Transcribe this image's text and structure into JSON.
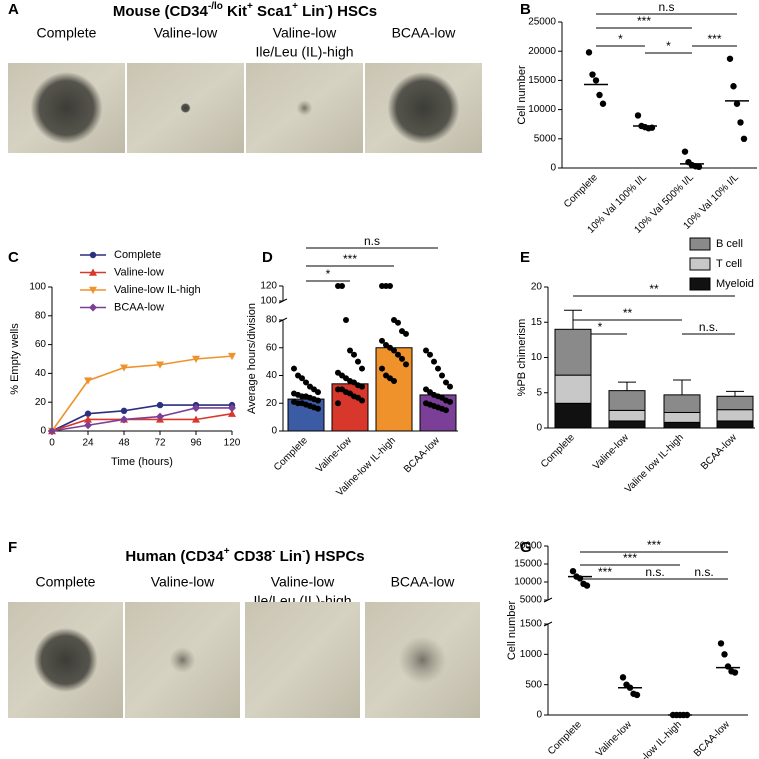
{
  "figure_a": {
    "panel_label": "A",
    "title": [
      "Mouse (CD34",
      "-/lo",
      " Kit",
      "+",
      " Sca1",
      "+",
      " Lin",
      "-",
      ") HSCs"
    ],
    "conditions": [
      [
        "Complete"
      ],
      [
        "Valine-low"
      ],
      [
        "Valine-low",
        "Ile/Leu (IL)-high"
      ],
      [
        "BCAA-low"
      ]
    ]
  },
  "figure_f": {
    "panel_label": "F",
    "title": [
      "Human (CD34",
      "+",
      " CD38",
      "-",
      " Lin",
      "-",
      ") HSPCs"
    ],
    "conditions": [
      [
        "Complete"
      ],
      [
        "Valine-low"
      ],
      [
        "Valine-low",
        "Ile/Leu (IL)-high"
      ],
      [
        "BCAA-low"
      ]
    ]
  },
  "chart_data": [
    {
      "panel_label": "B",
      "type": "dot_plot",
      "ylabel": "Cell number",
      "categories": [
        "Complete",
        "10% Val 100% I/L",
        "10% Val 500% I/L",
        "10% Val 10% I/L"
      ],
      "points": [
        [
          19800,
          16000,
          15000,
          12500,
          11000
        ],
        [
          9000,
          7200,
          7000,
          6800,
          6900
        ],
        [
          2800,
          1000,
          500,
          300,
          200
        ],
        [
          18700,
          14000,
          11000,
          7800,
          5000
        ]
      ],
      "means": [
        14300,
        7200,
        700,
        11500
      ],
      "ylim": [
        0,
        25000
      ],
      "yticks": [
        0,
        5000,
        10000,
        15000,
        20000,
        25000
      ],
      "annotations": [
        "n.s",
        "***",
        "*",
        "*",
        "***"
      ],
      "color": "#000000"
    },
    {
      "panel_label": "C",
      "type": "line",
      "ylabel": "% Empty wells",
      "xlabel": "Time (hours)",
      "x": [
        0,
        24,
        48,
        72,
        96,
        120
      ],
      "xlim": [
        0,
        120
      ],
      "xticks": [
        0,
        24,
        48,
        72,
        96,
        120
      ],
      "ylim": [
        0,
        100
      ],
      "yticks": [
        0,
        20,
        40,
        60,
        80,
        100
      ],
      "legend": "upper left",
      "series": [
        {
          "name": "Complete",
          "color": "#2b2f7f",
          "marker": "circle",
          "values": [
            0,
            12,
            14,
            18,
            18,
            18
          ]
        },
        {
          "name": "Valine-low",
          "color": "#d8382c",
          "marker": "triangle",
          "values": [
            0,
            8,
            8,
            8,
            8,
            12
          ]
        },
        {
          "name": "Valine-low IL-high",
          "color": "#f0922b",
          "marker": "triangle-down",
          "values": [
            0,
            35,
            44,
            46,
            50,
            52
          ]
        },
        {
          "name": "BCAA-low",
          "color": "#7b3f98",
          "marker": "diamond",
          "values": [
            0,
            4,
            8,
            10,
            16,
            16
          ]
        }
      ]
    },
    {
      "panel_label": "D",
      "type": "bar_dots",
      "ylabel": "Average hours/division",
      "categories": [
        "Complete",
        "Valine-low",
        "Valine-low IL-high",
        "BCAA-low"
      ],
      "values": [
        23,
        34,
        60,
        26
      ],
      "colors": [
        "#3b5ba5",
        "#d8382c",
        "#f0922b",
        "#7b3f98"
      ],
      "points": [
        [
          45,
          40,
          38,
          35,
          32,
          30,
          28,
          27,
          26,
          25,
          25,
          24,
          23,
          22,
          21,
          20,
          20,
          19,
          18,
          17,
          16
        ],
        [
          120,
          120,
          80,
          58,
          55,
          50,
          45,
          42,
          40,
          38,
          36,
          35,
          33,
          32,
          30,
          30,
          28,
          27,
          25,
          24,
          22,
          20
        ],
        [
          120,
          120,
          120,
          80,
          78,
          72,
          70,
          65,
          62,
          60,
          58,
          55,
          52,
          48,
          45,
          40,
          38,
          36
        ],
        [
          58,
          55,
          50,
          45,
          40,
          35,
          32,
          30,
          28,
          26,
          25,
          24,
          22,
          21,
          20,
          19,
          18,
          17,
          16,
          15
        ]
      ],
      "ylim": [
        0,
        80
      ],
      "yticks": [
        0,
        20,
        40,
        60,
        80
      ],
      "ylim_upper": [
        100,
        120
      ],
      "yticks_upper": [
        100,
        120
      ],
      "annotations": [
        "n.s",
        "***",
        "*"
      ]
    },
    {
      "panel_label": "E",
      "type": "stacked_bar",
      "ylabel": "%PB chimerism",
      "categories": [
        "Complete",
        "Valine-low",
        "Valine low IL-high",
        "BCAA-low"
      ],
      "series": [
        {
          "name": "Myeloid",
          "color": "#111111",
          "values": [
            3.5,
            1,
            0.8,
            1
          ]
        },
        {
          "name": "T cell",
          "color": "#c8c8c8",
          "values": [
            4,
            1.5,
            1.4,
            1.6
          ]
        },
        {
          "name": "B cell",
          "color": "#8a8a8a",
          "values": [
            6.5,
            2.8,
            2.5,
            1.9
          ]
        }
      ],
      "errors": [
        2.7,
        1.2,
        2.1,
        0.7
      ],
      "ylim": [
        0,
        20
      ],
      "yticks": [
        0,
        5,
        10,
        15,
        20
      ],
      "legend": "upper right",
      "annotations": [
        "**",
        "**",
        "*",
        "n.s."
      ]
    },
    {
      "panel_label": "G",
      "type": "dot_plot",
      "ylabel": "Cell number",
      "categories": [
        "Complete",
        "Valine-low",
        "Valine-low IL-high",
        "BCAA-low"
      ],
      "points": [
        [
          13000,
          11500,
          11000,
          9500,
          9000
        ],
        [
          620,
          500,
          450,
          350,
          330
        ],
        [
          0,
          0,
          0,
          0,
          0
        ],
        [
          1180,
          1000,
          800,
          720,
          700
        ]
      ],
      "means": [
        11500,
        450,
        0,
        780
      ],
      "ylim": [
        0,
        1500
      ],
      "yticks": [
        0,
        500,
        1000,
        1500
      ],
      "ylim_upper": [
        5000,
        20000
      ],
      "yticks_upper": [
        5000,
        10000,
        15000,
        20000
      ],
      "annotations": [
        "***",
        "***",
        "***",
        "n.s.",
        "n.s."
      ],
      "color": "#000000"
    }
  ]
}
